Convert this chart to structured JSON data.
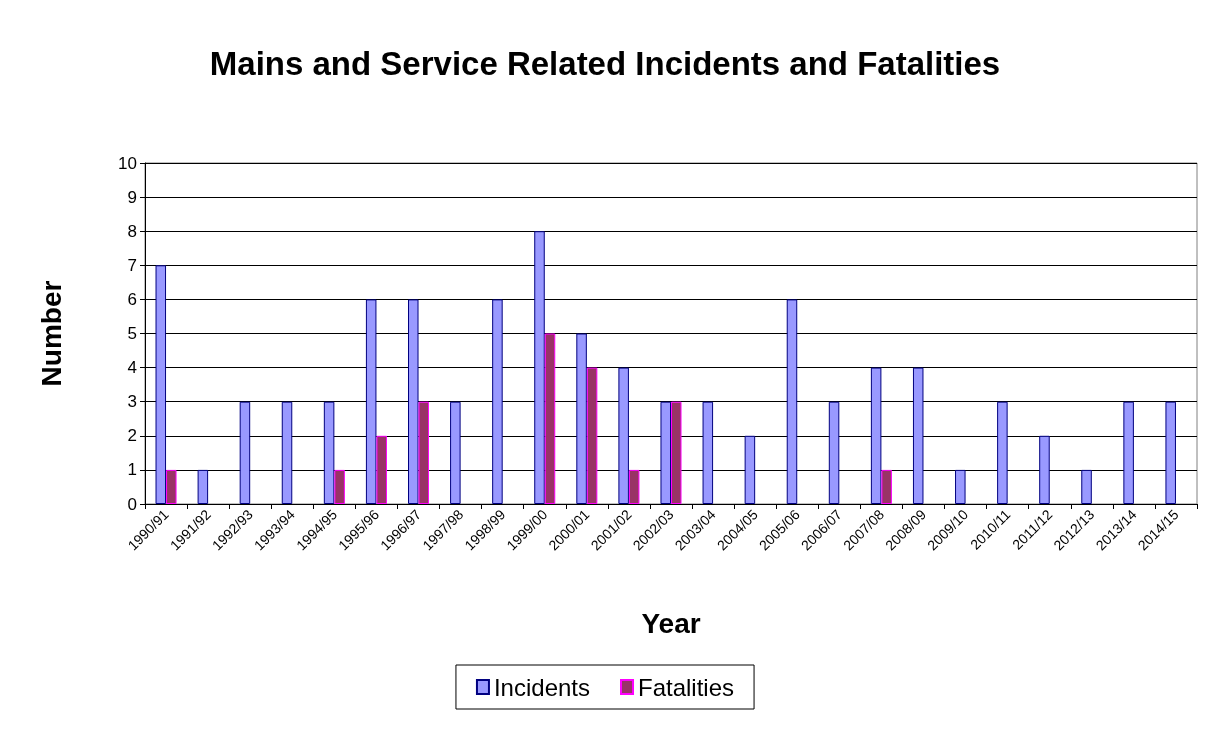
{
  "chart_data": {
    "type": "bar",
    "title": "Mains and Service Related Incidents and Fatalities",
    "xlabel": "Year",
    "ylabel": "Number",
    "categories": [
      "1990/91",
      "1991/92",
      "1992/93",
      "1993/94",
      "1994/95",
      "1995/96",
      "1996/97",
      "1997/98",
      "1998/99",
      "1999/00",
      "2000/01",
      "2001/02",
      "2002/03",
      "2003/04",
      "2004/05",
      "2005/06",
      "2006/07",
      "2007/08",
      "2008/09",
      "2009/10",
      "2010/11",
      "2011/12",
      "2012/13",
      "2013/14",
      "2014/15"
    ],
    "series": [
      {
        "name": "Incidents",
        "color": "#9999ff",
        "values": [
          7,
          1,
          3,
          3,
          3,
          6,
          6,
          3,
          6,
          8,
          5,
          4,
          3,
          3,
          2,
          6,
          3,
          4,
          4,
          1,
          3,
          2,
          1,
          3,
          3
        ]
      },
      {
        "name": "Fatalities",
        "color": "#993366",
        "values": [
          1,
          null,
          null,
          null,
          1,
          2,
          3,
          null,
          null,
          5,
          4,
          1,
          3,
          null,
          null,
          null,
          null,
          1,
          null,
          null,
          null,
          null,
          null,
          null,
          null
        ]
      }
    ],
    "ylim": [
      0,
      10
    ],
    "yticks": [
      0,
      1,
      2,
      3,
      4,
      5,
      6,
      7,
      8,
      9,
      10
    ],
    "grid": "y",
    "legend": "bottom"
  }
}
